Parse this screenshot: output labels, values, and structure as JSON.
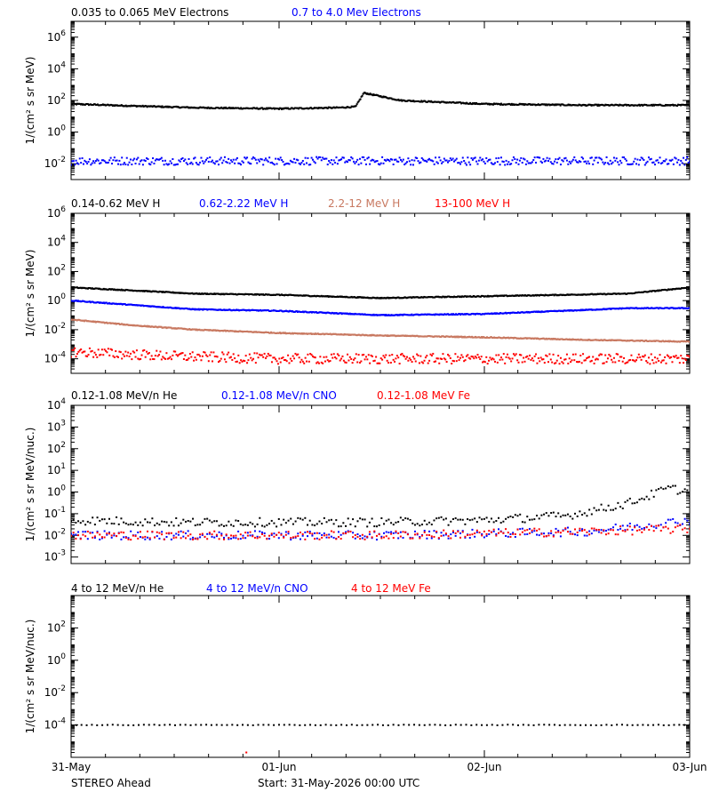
{
  "chart_data": [
    {
      "type": "scatter",
      "ylabel": "1/(cm² s sr MeV)",
      "yscale": "log",
      "ylim": [
        0.001,
        10000000
      ],
      "xlim": [
        "31-May",
        "03-Jun"
      ],
      "series": [
        {
          "name": "0.035 to 0.065 MeV Electrons",
          "color": "#000000",
          "x": [
            0,
            0.3,
            0.6,
            1.0,
            1.3,
            1.38,
            1.42,
            1.6,
            2.0,
            2.5,
            3.0
          ],
          "y": [
            60,
            45,
            35,
            30,
            35,
            40,
            300,
            100,
            60,
            50,
            50
          ]
        },
        {
          "name": "0.7 to 4.0 Mev Electrons",
          "color": "#0000ff",
          "x": [
            0,
            0.5,
            1.0,
            1.5,
            2.0,
            2.5,
            3.0
          ],
          "y": [
            0.015,
            0.015,
            0.015,
            0.015,
            0.015,
            0.015,
            0.015
          ]
        }
      ]
    },
    {
      "type": "scatter",
      "ylabel": "1/(cm² s sr MeV)",
      "yscale": "log",
      "ylim": [
        1e-05,
        1000000
      ],
      "xlim": [
        "31-May",
        "03-Jun"
      ],
      "series": [
        {
          "name": "0.14-0.62 MeV H",
          "color": "#000000",
          "x": [
            0,
            0.3,
            0.6,
            1.0,
            1.5,
            2.0,
            2.4,
            2.7,
            3.0
          ],
          "y": [
            8,
            5,
            3,
            2.5,
            1.5,
            2,
            2.5,
            3,
            8
          ]
        },
        {
          "name": "0.62-2.22 MeV H",
          "color": "#0000ff",
          "x": [
            0,
            0.3,
            0.6,
            1.0,
            1.5,
            2.0,
            2.4,
            2.7,
            3.0
          ],
          "y": [
            1,
            0.5,
            0.25,
            0.2,
            0.1,
            0.12,
            0.2,
            0.3,
            0.3
          ]
        },
        {
          "name": "2.2-12 MeV H",
          "color": "#c87860",
          "x": [
            0,
            0.3,
            0.6,
            1.0,
            1.5,
            2.0,
            2.5,
            3.0
          ],
          "y": [
            0.05,
            0.02,
            0.01,
            0.006,
            0.004,
            0.003,
            0.002,
            0.0015
          ]
        },
        {
          "name": "13-100 MeV H",
          "color": "#ff0000",
          "x": [
            0,
            0.5,
            1.0,
            1.5,
            2.0,
            2.5,
            3.0
          ],
          "y": [
            0.0003,
            0.00015,
            0.0001,
            0.0001,
            0.0001,
            0.0001,
            0.0001
          ]
        }
      ]
    },
    {
      "type": "scatter",
      "ylabel": "1/(cm² s sr MeV/nuc.)",
      "yscale": "log",
      "ylim": [
        0.0005,
        10000
      ],
      "xlim": [
        "31-May",
        "03-Jun"
      ],
      "series": [
        {
          "name": "0.12-1.08 MeV/n He",
          "color": "#000000",
          "x": [
            0,
            0.5,
            1.0,
            1.5,
            2.0,
            2.4,
            2.7,
            2.9,
            3.0
          ],
          "y": [
            0.05,
            0.04,
            0.04,
            0.04,
            0.05,
            0.08,
            0.3,
            1.5,
            1
          ]
        },
        {
          "name": "0.12-1.08 MeV/n CNO",
          "color": "#0000ff",
          "x": [
            0,
            0.5,
            1.0,
            1.5,
            2.0,
            2.5,
            3.0
          ],
          "y": [
            0.01,
            0.01,
            0.01,
            0.01,
            0.012,
            0.015,
            0.05
          ]
        },
        {
          "name": "0.12-1.08 MeV Fe",
          "color": "#ff0000",
          "x": [
            0,
            0.5,
            1.0,
            1.5,
            2.0,
            2.5,
            3.0
          ],
          "y": [
            0.01,
            0.01,
            0.01,
            0.01,
            0.012,
            0.015,
            0.02
          ]
        }
      ]
    },
    {
      "type": "scatter",
      "ylabel": "1/(cm² s sr MeV/nuc.)",
      "yscale": "log",
      "ylim": [
        1e-06,
        10000
      ],
      "xlim": [
        "31-May",
        "03-Jun"
      ],
      "series": [
        {
          "name": "4 to 12 MeV/n He",
          "color": "#000000",
          "x": [
            0,
            0.5,
            1.0,
            1.5,
            2.0,
            2.5,
            3.0
          ],
          "y": [
            0.0001,
            0.0001,
            0.0001,
            0.0001,
            0.0001,
            0.0001,
            0.0001
          ]
        },
        {
          "name": "4 to 12 MeV/n CNO",
          "color": "#0000ff",
          "x": [],
          "y": []
        },
        {
          "name": "4 to 12 MeV Fe",
          "color": "#ff0000",
          "x": [
            0.85
          ],
          "y": [
            2e-06
          ]
        }
      ]
    }
  ],
  "panels": [
    {
      "ylabel": "1/(cm² s sr MeV)",
      "legend": [
        {
          "text": "0.035 to 0.065 MeV Electrons",
          "color": "#000000"
        },
        {
          "text": "0.7 to 4.0 Mev Electrons",
          "color": "#0000ff"
        }
      ],
      "ticks": [
        {
          "base": "10",
          "exp": "6",
          "value": 1000000
        },
        {
          "base": "10",
          "exp": "4",
          "value": 10000
        },
        {
          "base": "10",
          "exp": "2",
          "value": 100
        },
        {
          "base": "10",
          "exp": "0",
          "value": 1
        },
        {
          "base": "10",
          "exp": "-2",
          "value": 0.01
        }
      ]
    },
    {
      "ylabel": "1/(cm² s sr MeV)",
      "legend": [
        {
          "text": "0.14-0.62 MeV H",
          "color": "#000000"
        },
        {
          "text": "0.62-2.22 MeV H",
          "color": "#0000ff"
        },
        {
          "text": "2.2-12 MeV H",
          "color": "#c87860"
        },
        {
          "text": "13-100 MeV H",
          "color": "#ff0000"
        }
      ],
      "ticks": [
        {
          "base": "10",
          "exp": "6",
          "value": 1000000
        },
        {
          "base": "10",
          "exp": "4",
          "value": 10000
        },
        {
          "base": "10",
          "exp": "2",
          "value": 100
        },
        {
          "base": "10",
          "exp": "0",
          "value": 1
        },
        {
          "base": "10",
          "exp": "-2",
          "value": 0.01
        },
        {
          "base": "10",
          "exp": "-4",
          "value": 0.0001
        }
      ]
    },
    {
      "ylabel": "1/(cm² s sr MeV/nuc.)",
      "legend": [
        {
          "text": "0.12-1.08 MeV/n He",
          "color": "#000000"
        },
        {
          "text": "0.12-1.08 MeV/n CNO",
          "color": "#0000ff"
        },
        {
          "text": "0.12-1.08 MeV Fe",
          "color": "#ff0000"
        }
      ],
      "ticks": [
        {
          "base": "10",
          "exp": "4",
          "value": 10000
        },
        {
          "base": "10",
          "exp": "3",
          "value": 1000
        },
        {
          "base": "10",
          "exp": "2",
          "value": 100
        },
        {
          "base": "10",
          "exp": "1",
          "value": 10
        },
        {
          "base": "10",
          "exp": "0",
          "value": 1
        },
        {
          "base": "10",
          "exp": "-1",
          "value": 0.1
        },
        {
          "base": "10",
          "exp": "-2",
          "value": 0.01
        },
        {
          "base": "10",
          "exp": "-3",
          "value": 0.001
        }
      ]
    },
    {
      "ylabel": "1/(cm² s sr MeV/nuc.)",
      "legend": [
        {
          "text": "4 to 12 MeV/n He",
          "color": "#000000"
        },
        {
          "text": "4 to 12 MeV/n CNO",
          "color": "#0000ff"
        },
        {
          "text": "4 to 12 MeV Fe",
          "color": "#ff0000"
        }
      ],
      "ticks": [
        {
          "base": "10",
          "exp": "2",
          "value": 100
        },
        {
          "base": "10",
          "exp": "0",
          "value": 1
        },
        {
          "base": "10",
          "exp": "-2",
          "value": 0.01
        },
        {
          "base": "10",
          "exp": "-4",
          "value": 0.0001
        }
      ]
    }
  ],
  "xaxis": {
    "labels": [
      "31-May",
      "01-Jun",
      "02-Jun",
      "03-Jun"
    ]
  },
  "footer": {
    "spacecraft": "STEREO Ahead",
    "start": "Start: 31-May-2026 00:00 UTC"
  }
}
